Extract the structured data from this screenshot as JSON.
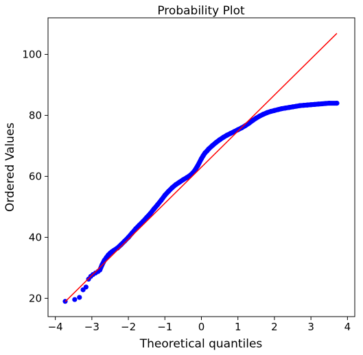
{
  "chart_data": {
    "type": "scatter",
    "title": "Probability Plot",
    "xlabel": "Theoretical quantiles",
    "ylabel": "Ordered Values",
    "xlim": [
      -4.2,
      4.2
    ],
    "ylim": [
      14,
      112
    ],
    "xticks": [
      -4,
      -3,
      -2,
      -1,
      0,
      1,
      2,
      3,
      4
    ],
    "yticks": [
      20,
      40,
      60,
      80,
      100
    ],
    "xtick_labels": [
      "−4",
      "−3",
      "−2",
      "−1",
      "0",
      "1",
      "2",
      "3",
      "4"
    ],
    "ytick_labels": [
      "20",
      "40",
      "60",
      "80",
      "100"
    ],
    "grid": false,
    "series": [
      {
        "kind": "points",
        "color": "#0000ff",
        "x": [
          -3.73,
          -3.47,
          -3.34,
          -3.24,
          -3.16,
          -3.09,
          -3.03,
          -2.97,
          -2.9,
          -2.83,
          -2.78,
          -2.72,
          -2.66,
          -2.6,
          -2.55,
          -2.5,
          -2.45,
          -2.4,
          -2.3,
          -2.2,
          -2.1,
          -2.0,
          -1.9,
          -1.8,
          -1.7,
          -1.6,
          -1.5,
          -1.4,
          -1.3,
          -1.2,
          -1.1,
          -1.0,
          -0.9,
          -0.8,
          -0.7,
          -0.6,
          -0.5,
          -0.4,
          -0.3,
          -0.2,
          -0.1,
          0.0,
          0.05,
          0.1,
          0.15,
          0.2,
          0.3,
          0.4,
          0.5,
          0.6,
          0.7,
          0.8,
          0.9,
          1.0,
          1.1,
          1.2,
          1.3,
          1.4,
          1.5,
          1.6,
          1.7,
          1.8,
          1.9,
          2.0,
          2.1,
          2.2,
          2.3,
          2.4,
          2.5,
          2.6,
          2.7,
          2.8,
          2.9,
          3.0,
          3.1,
          3.2,
          3.3,
          3.4,
          3.5,
          3.71
        ],
        "y": [
          19.0,
          19.6,
          20.3,
          22.8,
          23.7,
          26.3,
          27.2,
          27.8,
          28.3,
          28.8,
          29.3,
          31.0,
          32.4,
          33.4,
          34.2,
          34.8,
          35.3,
          35.7,
          36.5,
          37.6,
          38.8,
          40.0,
          41.4,
          42.8,
          44.0,
          45.2,
          46.5,
          47.8,
          49.3,
          50.7,
          52.2,
          53.8,
          55.1,
          56.3,
          57.3,
          58.1,
          58.9,
          59.6,
          60.4,
          61.6,
          63.5,
          65.8,
          66.8,
          67.7,
          68.3,
          69.0,
          70.1,
          71.1,
          72.0,
          72.8,
          73.5,
          74.1,
          74.7,
          75.3,
          75.9,
          76.6,
          77.4,
          78.3,
          79.1,
          79.8,
          80.4,
          80.9,
          81.3,
          81.6,
          81.9,
          82.2,
          82.4,
          82.6,
          82.8,
          83.0,
          83.2,
          83.3,
          83.4,
          83.5,
          83.6,
          83.7,
          83.8,
          83.9,
          84.0,
          84.0
        ]
      },
      {
        "kind": "line",
        "color": "#ff0000",
        "x": [
          -3.73,
          3.71
        ],
        "y": [
          18.9,
          106.9
        ]
      }
    ]
  }
}
